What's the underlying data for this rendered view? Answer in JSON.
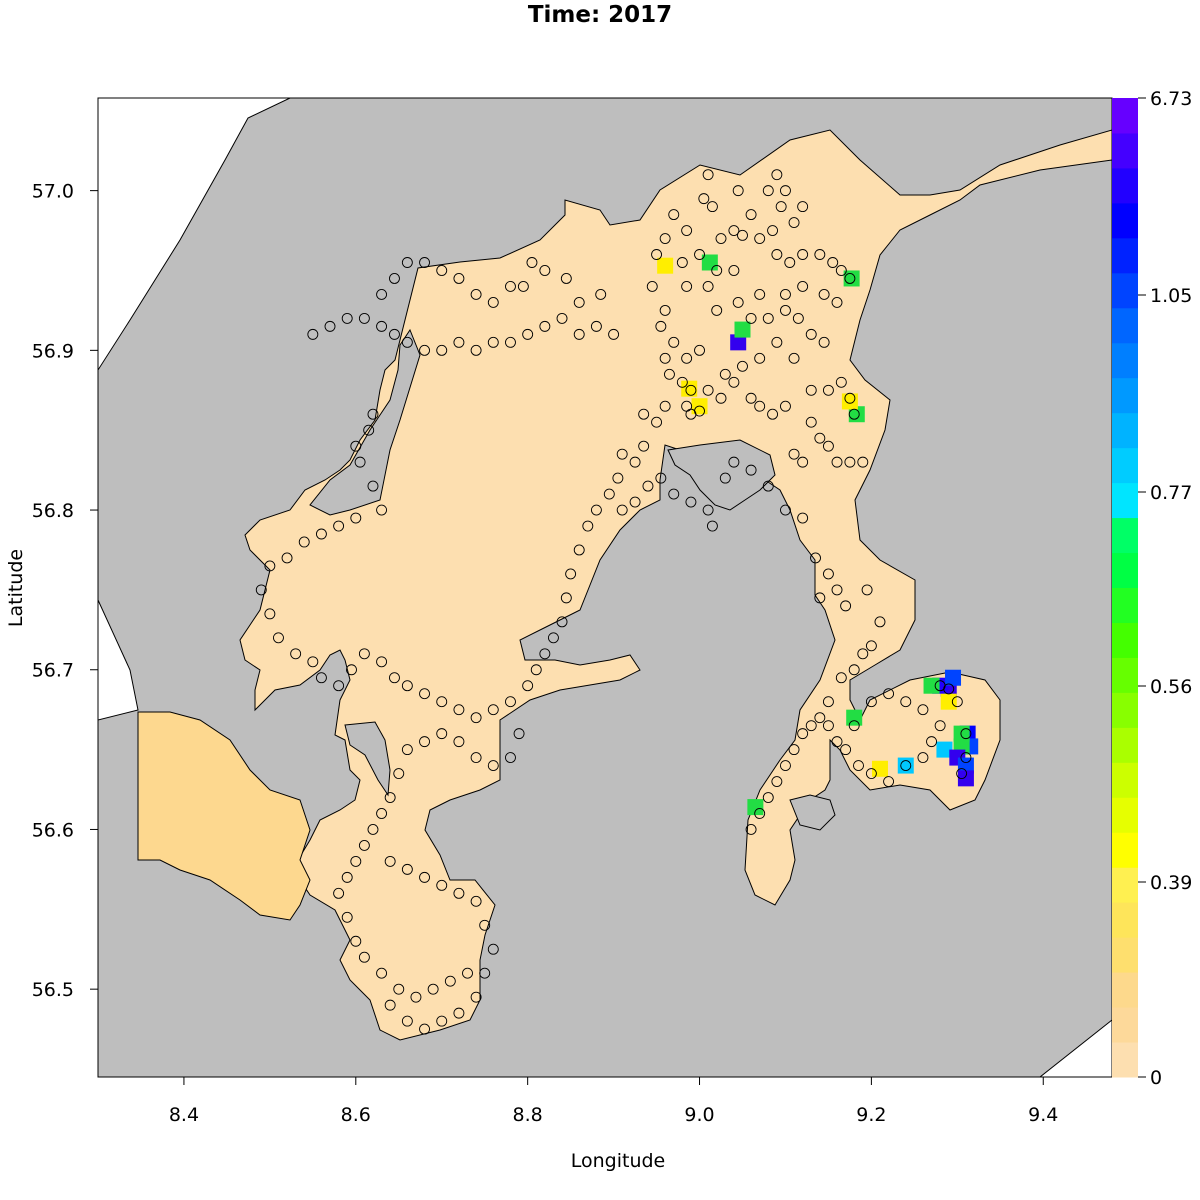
{
  "title": "Time: 2017",
  "xlabel": "Longitude",
  "ylabel": "Latitude",
  "map": {
    "x_range": [
      8.3,
      9.48
    ],
    "y_range": [
      56.445,
      57.058
    ],
    "x_ticks": [
      "8.4",
      "8.6",
      "8.8",
      "9.0",
      "9.2",
      "9.4"
    ],
    "y_ticks": [
      "56.5",
      "56.6",
      "56.7",
      "56.8",
      "56.9",
      "57.0"
    ],
    "colors": {
      "land": "#bebebe",
      "water_low": "#fddfb0",
      "water_mid": "#fdd88f",
      "coastline": "#000000"
    }
  },
  "colorbar": {
    "labels": [
      "6.73",
      "1.05",
      "0.77",
      "0.56",
      "0.39",
      "0"
    ],
    "colors": [
      "#fddfb0",
      "#fdd99a",
      "#fdd98c",
      "#fedf6e",
      "#fee55a",
      "#fff050",
      "#ffff00",
      "#e6ff00",
      "#ccff00",
      "#aaff00",
      "#88ff00",
      "#66ff00",
      "#44ff00",
      "#22ff22",
      "#00ff44",
      "#00ff66",
      "#00e5ff",
      "#00ccff",
      "#00b3ff",
      "#0099ff",
      "#007fff",
      "#0066ff",
      "#0044ff",
      "#0022ff",
      "#0000ff",
      "#2200ff",
      "#4400ff",
      "#6600ff"
    ]
  },
  "hotspots": [
    {
      "lon": 9.045,
      "lat": 56.905,
      "color": "#3300ee"
    },
    {
      "lon": 9.05,
      "lat": 56.913,
      "color": "#22dd44"
    },
    {
      "lon": 9.012,
      "lat": 56.955,
      "color": "#22dd44"
    },
    {
      "lon": 8.96,
      "lat": 56.953,
      "color": "#ffee00"
    },
    {
      "lon": 9.177,
      "lat": 56.945,
      "color": "#22dd44"
    },
    {
      "lon": 9.183,
      "lat": 56.86,
      "color": "#22dd44"
    },
    {
      "lon": 9.175,
      "lat": 56.868,
      "color": "#ffee00"
    },
    {
      "lon": 8.988,
      "lat": 56.876,
      "color": "#ffee00"
    },
    {
      "lon": 9.0,
      "lat": 56.865,
      "color": "#ffee00"
    },
    {
      "lon": 9.065,
      "lat": 56.614,
      "color": "#22dd44"
    },
    {
      "lon": 9.24,
      "lat": 56.64,
      "color": "#00c8ff"
    },
    {
      "lon": 9.21,
      "lat": 56.638,
      "color": "#ffee00"
    },
    {
      "lon": 9.29,
      "lat": 56.688,
      "color": "#3300ee"
    },
    {
      "lon": 9.28,
      "lat": 56.69,
      "color": "#2200ff"
    },
    {
      "lon": 9.27,
      "lat": 56.69,
      "color": "#22dd44"
    },
    {
      "lon": 9.295,
      "lat": 56.695,
      "color": "#0044ff"
    },
    {
      "lon": 9.29,
      "lat": 56.68,
      "color": "#ffee00"
    },
    {
      "lon": 9.312,
      "lat": 56.66,
      "color": "#0000ff"
    },
    {
      "lon": 9.315,
      "lat": 56.652,
      "color": "#0044ff"
    },
    {
      "lon": 9.305,
      "lat": 56.652,
      "color": "#22dd44"
    },
    {
      "lon": 9.285,
      "lat": 56.65,
      "color": "#00c8ff"
    },
    {
      "lon": 9.3,
      "lat": 56.645,
      "color": "#3300ee"
    },
    {
      "lon": 9.31,
      "lat": 56.64,
      "color": "#0044ff"
    },
    {
      "lon": 9.31,
      "lat": 56.632,
      "color": "#3300ee"
    },
    {
      "lon": 9.305,
      "lat": 56.66,
      "color": "#22dd44"
    },
    {
      "lon": 9.18,
      "lat": 56.67,
      "color": "#22dd44"
    }
  ],
  "stations": [
    [
      9.01,
      57.01
    ],
    [
      9.045,
      57.0
    ],
    [
      9.08,
      57.0
    ],
    [
      9.09,
      57.01
    ],
    [
      9.1,
      57.0
    ],
    [
      9.12,
      56.99
    ],
    [
      9.095,
      56.99
    ],
    [
      9.085,
      56.975
    ],
    [
      9.11,
      56.98
    ],
    [
      9.06,
      56.985
    ],
    [
      9.04,
      56.975
    ],
    [
      9.015,
      56.99
    ],
    [
      9.005,
      56.995
    ],
    [
      8.97,
      56.985
    ],
    [
      8.985,
      56.975
    ],
    [
      8.96,
      56.97
    ],
    [
      9.025,
      56.97
    ],
    [
      9.05,
      56.972
    ],
    [
      9.07,
      56.97
    ],
    [
      9.09,
      56.96
    ],
    [
      9.105,
      56.955
    ],
    [
      9.12,
      56.96
    ],
    [
      9.14,
      56.96
    ],
    [
      9.155,
      56.955
    ],
    [
      9.165,
      56.95
    ],
    [
      9.175,
      56.945
    ],
    [
      9.16,
      56.93
    ],
    [
      9.145,
      56.935
    ],
    [
      9.12,
      56.94
    ],
    [
      9.1,
      56.935
    ],
    [
      9.07,
      56.935
    ],
    [
      9.04,
      56.95
    ],
    [
      9.02,
      56.95
    ],
    [
      9.0,
      56.96
    ],
    [
      8.98,
      56.955
    ],
    [
      8.95,
      56.96
    ],
    [
      8.945,
      56.94
    ],
    [
      8.96,
      56.925
    ],
    [
      8.985,
      56.94
    ],
    [
      9.01,
      56.94
    ],
    [
      9.02,
      56.925
    ],
    [
      9.045,
      56.93
    ],
    [
      9.06,
      56.92
    ],
    [
      9.08,
      56.92
    ],
    [
      9.1,
      56.925
    ],
    [
      9.115,
      56.92
    ],
    [
      9.13,
      56.91
    ],
    [
      9.145,
      56.905
    ],
    [
      9.11,
      56.895
    ],
    [
      9.09,
      56.905
    ],
    [
      9.07,
      56.895
    ],
    [
      9.05,
      56.89
    ],
    [
      9.03,
      56.885
    ],
    [
      9.0,
      56.9
    ],
    [
      8.985,
      56.895
    ],
    [
      8.97,
      56.905
    ],
    [
      8.955,
      56.915
    ],
    [
      8.96,
      56.895
    ],
    [
      8.965,
      56.885
    ],
    [
      8.98,
      56.88
    ],
    [
      8.99,
      56.875
    ],
    [
      9.01,
      56.875
    ],
    [
      9.025,
      56.87
    ],
    [
      9.04,
      56.88
    ],
    [
      9.06,
      56.87
    ],
    [
      9.07,
      56.865
    ],
    [
      9.085,
      56.86
    ],
    [
      9.1,
      56.865
    ],
    [
      9.13,
      56.875
    ],
    [
      9.15,
      56.875
    ],
    [
      9.165,
      56.88
    ],
    [
      9.175,
      56.87
    ],
    [
      9.18,
      56.86
    ],
    [
      9.13,
      56.855
    ],
    [
      9.14,
      56.845
    ],
    [
      9.15,
      56.84
    ],
    [
      9.16,
      56.83
    ],
    [
      9.175,
      56.83
    ],
    [
      9.19,
      56.83
    ],
    [
      9.12,
      56.83
    ],
    [
      9.11,
      56.835
    ],
    [
      8.99,
      56.86
    ],
    [
      9.0,
      56.862
    ],
    [
      8.985,
      56.865
    ],
    [
      8.96,
      56.865
    ],
    [
      8.95,
      56.855
    ],
    [
      8.935,
      56.86
    ],
    [
      8.935,
      56.84
    ],
    [
      8.925,
      56.83
    ],
    [
      8.91,
      56.835
    ],
    [
      8.905,
      56.82
    ],
    [
      8.895,
      56.81
    ],
    [
      8.91,
      56.8
    ],
    [
      8.925,
      56.805
    ],
    [
      8.94,
      56.815
    ],
    [
      8.955,
      56.82
    ],
    [
      8.97,
      56.81
    ],
    [
      8.99,
      56.805
    ],
    [
      9.01,
      56.8
    ],
    [
      9.015,
      56.79
    ],
    [
      9.03,
      56.82
    ],
    [
      9.04,
      56.83
    ],
    [
      9.06,
      56.825
    ],
    [
      9.08,
      56.815
    ],
    [
      9.1,
      56.8
    ],
    [
      9.12,
      56.795
    ],
    [
      9.135,
      56.77
    ],
    [
      9.15,
      56.76
    ],
    [
      9.16,
      56.75
    ],
    [
      9.14,
      56.745
    ],
    [
      9.17,
      56.74
    ],
    [
      9.195,
      56.75
    ],
    [
      9.21,
      56.73
    ],
    [
      9.2,
      56.715
    ],
    [
      9.19,
      56.71
    ],
    [
      9.18,
      56.7
    ],
    [
      9.165,
      56.695
    ],
    [
      9.15,
      56.68
    ],
    [
      9.14,
      56.67
    ],
    [
      9.15,
      56.665
    ],
    [
      9.16,
      56.655
    ],
    [
      8.9,
      56.91
    ],
    [
      8.88,
      56.915
    ],
    [
      8.86,
      56.91
    ],
    [
      8.84,
      56.92
    ],
    [
      8.82,
      56.915
    ],
    [
      8.8,
      56.91
    ],
    [
      8.78,
      56.905
    ],
    [
      8.76,
      56.905
    ],
    [
      8.74,
      56.9
    ],
    [
      8.72,
      56.905
    ],
    [
      8.7,
      56.9
    ],
    [
      8.68,
      56.9
    ],
    [
      8.66,
      56.905
    ],
    [
      8.645,
      56.91
    ],
    [
      8.63,
      56.915
    ],
    [
      8.61,
      56.92
    ],
    [
      8.59,
      56.92
    ],
    [
      8.57,
      56.915
    ],
    [
      8.55,
      56.91
    ],
    [
      8.885,
      56.935
    ],
    [
      8.86,
      56.93
    ],
    [
      8.845,
      56.945
    ],
    [
      8.82,
      56.95
    ],
    [
      8.805,
      56.955
    ],
    [
      8.795,
      56.94
    ],
    [
      8.78,
      56.94
    ],
    [
      8.76,
      56.93
    ],
    [
      8.74,
      56.935
    ],
    [
      8.72,
      56.945
    ],
    [
      8.7,
      56.95
    ],
    [
      8.68,
      56.955
    ],
    [
      8.66,
      56.955
    ],
    [
      8.645,
      56.945
    ],
    [
      8.63,
      56.935
    ],
    [
      8.62,
      56.86
    ],
    [
      8.615,
      56.85
    ],
    [
      8.6,
      56.84
    ],
    [
      8.605,
      56.83
    ],
    [
      8.62,
      56.815
    ],
    [
      8.63,
      56.8
    ],
    [
      8.6,
      56.795
    ],
    [
      8.58,
      56.79
    ],
    [
      8.56,
      56.785
    ],
    [
      8.54,
      56.78
    ],
    [
      8.52,
      56.77
    ],
    [
      8.5,
      56.765
    ],
    [
      8.49,
      56.75
    ],
    [
      8.5,
      56.735
    ],
    [
      8.51,
      56.72
    ],
    [
      8.53,
      56.71
    ],
    [
      8.55,
      56.705
    ],
    [
      8.56,
      56.695
    ],
    [
      8.58,
      56.69
    ],
    [
      8.595,
      56.7
    ],
    [
      8.61,
      56.71
    ],
    [
      8.63,
      56.705
    ],
    [
      8.645,
      56.695
    ],
    [
      8.66,
      56.69
    ],
    [
      8.68,
      56.685
    ],
    [
      8.7,
      56.68
    ],
    [
      8.72,
      56.675
    ],
    [
      8.74,
      56.67
    ],
    [
      8.76,
      56.675
    ],
    [
      8.78,
      56.68
    ],
    [
      8.8,
      56.69
    ],
    [
      8.81,
      56.7
    ],
    [
      8.82,
      56.71
    ],
    [
      8.83,
      56.72
    ],
    [
      8.84,
      56.73
    ],
    [
      8.845,
      56.745
    ],
    [
      8.85,
      56.76
    ],
    [
      8.86,
      56.775
    ],
    [
      8.87,
      56.79
    ],
    [
      8.88,
      56.8
    ],
    [
      8.72,
      56.655
    ],
    [
      8.74,
      56.645
    ],
    [
      8.76,
      56.64
    ],
    [
      8.78,
      56.645
    ],
    [
      8.79,
      56.66
    ],
    [
      8.7,
      56.66
    ],
    [
      8.68,
      56.655
    ],
    [
      8.66,
      56.65
    ],
    [
      8.65,
      56.635
    ],
    [
      8.64,
      56.62
    ],
    [
      8.63,
      56.61
    ],
    [
      8.62,
      56.6
    ],
    [
      8.61,
      56.59
    ],
    [
      8.6,
      56.58
    ],
    [
      8.59,
      56.57
    ],
    [
      8.58,
      56.56
    ],
    [
      8.59,
      56.545
    ],
    [
      8.6,
      56.53
    ],
    [
      8.61,
      56.52
    ],
    [
      8.63,
      56.51
    ],
    [
      8.65,
      56.5
    ],
    [
      8.67,
      56.495
    ],
    [
      8.69,
      56.5
    ],
    [
      8.71,
      56.505
    ],
    [
      8.73,
      56.51
    ],
    [
      8.64,
      56.49
    ],
    [
      8.66,
      56.48
    ],
    [
      8.68,
      56.475
    ],
    [
      8.7,
      56.48
    ],
    [
      8.72,
      56.485
    ],
    [
      8.74,
      56.495
    ],
    [
      8.75,
      56.51
    ],
    [
      8.76,
      56.525
    ],
    [
      8.75,
      56.54
    ],
    [
      8.74,
      56.555
    ],
    [
      8.72,
      56.56
    ],
    [
      8.7,
      56.565
    ],
    [
      8.68,
      56.57
    ],
    [
      8.66,
      56.575
    ],
    [
      8.64,
      56.58
    ],
    [
      9.06,
      56.6
    ],
    [
      9.07,
      56.61
    ],
    [
      9.08,
      56.62
    ],
    [
      9.09,
      56.63
    ],
    [
      9.1,
      56.64
    ],
    [
      9.11,
      56.65
    ],
    [
      9.12,
      56.66
    ],
    [
      9.13,
      56.665
    ],
    [
      9.22,
      56.63
    ],
    [
      9.24,
      56.64
    ],
    [
      9.26,
      56.645
    ],
    [
      9.27,
      56.655
    ],
    [
      9.28,
      56.665
    ],
    [
      9.26,
      56.675
    ],
    [
      9.24,
      56.68
    ],
    [
      9.22,
      56.685
    ],
    [
      9.2,
      56.68
    ],
    [
      9.18,
      56.665
    ],
    [
      9.17,
      56.65
    ],
    [
      9.185,
      56.64
    ],
    [
      9.2,
      56.635
    ],
    [
      9.28,
      56.69
    ],
    [
      9.29,
      56.688
    ],
    [
      9.3,
      56.68
    ],
    [
      9.31,
      56.66
    ],
    [
      9.31,
      56.645
    ],
    [
      9.305,
      56.635
    ]
  ]
}
